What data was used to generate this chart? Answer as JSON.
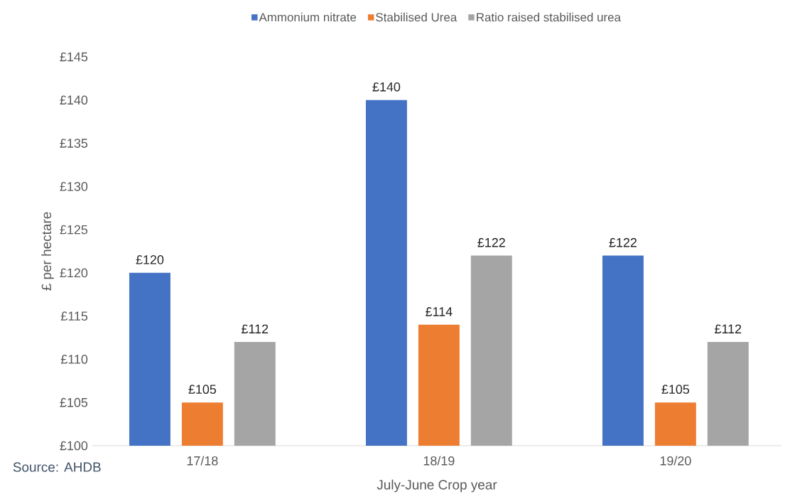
{
  "chart_data": {
    "type": "bar",
    "ylabel": "£ per hectare",
    "xlabel": "July-June Crop year",
    "annotations": [
      "Source: AHDB"
    ],
    "categories": [
      "17/18",
      "18/19",
      "19/20"
    ],
    "series": [
      {
        "name": "Ammonium nitrate",
        "color": "#4472c4",
        "values": [
          120,
          140,
          122
        ],
        "value_labels": [
          "£120",
          "£140",
          "£122"
        ]
      },
      {
        "name": "Stabilised Urea",
        "color": "#ed7d31",
        "values": [
          105,
          114,
          105
        ],
        "value_labels": [
          "£105",
          "£114",
          "£105"
        ]
      },
      {
        "name": "Ratio raised stabilised urea",
        "color": "#a5a5a5",
        "values": [
          112,
          122,
          112
        ],
        "value_labels": [
          "£112",
          "£122",
          "£112"
        ]
      }
    ],
    "ylim": [
      100,
      145
    ],
    "yticks": [
      {
        "value": 100,
        "label": "£100"
      },
      {
        "value": 105,
        "label": "£105"
      },
      {
        "value": 110,
        "label": "£110"
      },
      {
        "value": 115,
        "label": "£115"
      },
      {
        "value": 120,
        "label": "£120"
      },
      {
        "value": 125,
        "label": "£125"
      },
      {
        "value": 130,
        "label": "£130"
      },
      {
        "value": 135,
        "label": "£135"
      },
      {
        "value": 140,
        "label": "£140"
      },
      {
        "value": 145,
        "label": "£145"
      }
    ],
    "legend": "top",
    "grid": false
  }
}
